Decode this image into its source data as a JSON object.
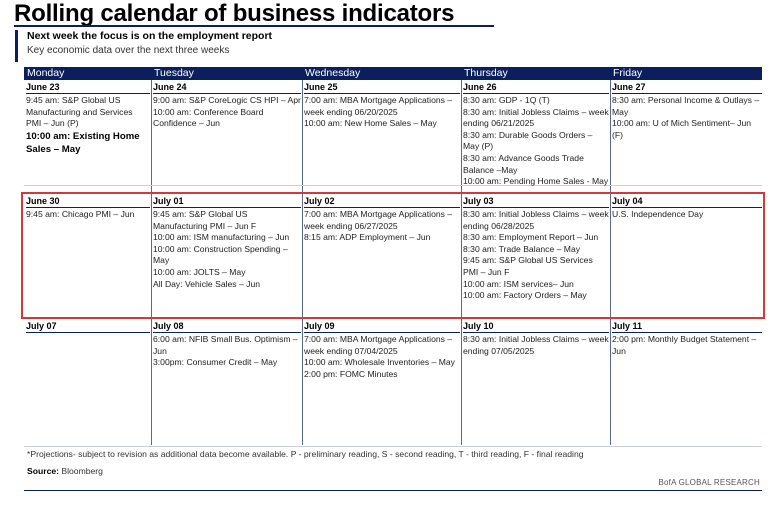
{
  "title": "Rolling calendar of business indicators",
  "subtitle": "Next week the focus is on the employment report",
  "subnote": "Key economic data over the next three weeks",
  "days": [
    "Monday",
    "Tuesday",
    "Wednesday",
    "Thursday",
    "Friday"
  ],
  "weeks": [
    [
      {
        "date": "June 23",
        "events": [
          {
            "text": "9:45 am: S&P Global US Manufacturing and Services PMI – Jun (P)",
            "bold": false
          },
          {
            "text": "10:00 am: Existing Home Sales – May",
            "bold": true
          }
        ]
      },
      {
        "date": "June 24",
        "events": [
          {
            "text": "9:00 am: S&P CoreLogic CS HPI – Apr",
            "bold": false
          },
          {
            "text": "10:00 am: Conference Board Confidence – Jun",
            "bold": false
          }
        ]
      },
      {
        "date": "June 25",
        "events": [
          {
            "text": "7:00 am: MBA Mortgage Applications – week ending 06/20/2025",
            "bold": false
          },
          {
            "text": "10:00 am: New Home Sales – May",
            "bold": false
          }
        ]
      },
      {
        "date": "June 26",
        "events": [
          {
            "text": "8:30 am: GDP - 1Q (T)",
            "bold": false
          },
          {
            "text": "8:30 am: Initial Jobless Claims – week ending 06/21/2025",
            "bold": false
          },
          {
            "text": "8:30 am: Durable Goods Orders – May (P)",
            "bold": false
          },
          {
            "text": "8:30 am: Advance Goods Trade Balance –May",
            "bold": false
          },
          {
            "text": "10:00 am: Pending Home Sales - May",
            "bold": false
          }
        ]
      },
      {
        "date": "June 27",
        "events": [
          {
            "text": "8:30 am: Personal Income & Outlays – May",
            "bold": false
          },
          {
            "text": "10:00 am: U of Mich Sentiment– Jun (F)",
            "bold": false
          }
        ]
      }
    ],
    [
      {
        "date": "June 30",
        "events": [
          {
            "text": "9:45 am: Chicago PMI – Jun",
            "bold": false
          }
        ]
      },
      {
        "date": "July 01",
        "events": [
          {
            "text": "9:45 am: S&P Global US Manufacturing PMI – Jun F",
            "bold": false
          },
          {
            "text": "10:00 am: ISM manufacturing – Jun",
            "bold": false
          },
          {
            "text": "10:00 am: Construction Spending – May",
            "bold": false
          },
          {
            "text": "10:00 am: JOLTS – May",
            "bold": false
          },
          {
            "text": "All Day: Vehicle Sales – Jun",
            "bold": false
          }
        ]
      },
      {
        "date": "July 02",
        "events": [
          {
            "text": "7:00 am: MBA Mortgage Applications – week ending 06/27/2025",
            "bold": false
          },
          {
            "text": "8:15 am: ADP Employment – Jun",
            "bold": false
          }
        ]
      },
      {
        "date": "July 03",
        "events": [
          {
            "text": "8:30 am: Initial Jobless Claims – week ending 06/28/2025",
            "bold": false
          },
          {
            "text": "8:30 am: Employment Report – Jun",
            "bold": false
          },
          {
            "text": "8:30 am: Trade Balance – May",
            "bold": false
          },
          {
            "text": "9:45 am: S&P Global US Services PMI – Jun F",
            "bold": false
          },
          {
            "text": "10:00 am: ISM services– Jun",
            "bold": false
          },
          {
            "text": "10:00 am: Factory Orders – May",
            "bold": false
          }
        ]
      },
      {
        "date": "July 04",
        "events": [
          {
            "text": "U.S. Independence Day",
            "bold": false
          }
        ]
      }
    ],
    [
      {
        "date": "July 07",
        "events": []
      },
      {
        "date": "July 08",
        "events": [
          {
            "text": "6:00 am: NFIB Small Bus. Optimism – Jun",
            "bold": false
          },
          {
            "text": "3:00pm: Consumer Credit – May",
            "bold": false
          }
        ]
      },
      {
        "date": "July 09",
        "events": [
          {
            "text": "7:00 am: MBA Mortgage Applications – week ending 07/04/2025",
            "bold": false
          },
          {
            "text": "10:00 am: Wholesale Inventories – May",
            "bold": false
          },
          {
            "text": "2:00 pm: FOMC Minutes",
            "bold": false
          }
        ]
      },
      {
        "date": "July 10",
        "events": [
          {
            "text": "8:30 am: Initial Jobless Claims – week ending 07/05/2025",
            "bold": false
          }
        ]
      },
      {
        "date": "July 11",
        "events": [
          {
            "text": "2:00 pm: Monthly Budget Statement – Jun",
            "bold": false
          }
        ]
      }
    ]
  ],
  "footnote": "*Projections- subject to revision as additional data become available. P - preliminary reading, S - second reading, T - third reading, F - final reading",
  "source_label": "Source:",
  "source_value": "Bloomberg",
  "brand": "BofA GLOBAL RESEARCH",
  "colors": {
    "navy": "#0a1f5c",
    "highlight": "#d13a3a"
  }
}
